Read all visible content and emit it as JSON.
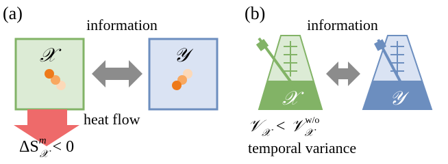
{
  "panels": [
    {
      "label": "(a)",
      "arrow_label": "information",
      "left_label": "𝒳",
      "right_label": "𝒴",
      "heat_label": "heat flow",
      "formula": {
        "base": "ΔS",
        "sup": "m",
        "sub": "𝒳",
        "rest": "< 0"
      }
    },
    {
      "label": "(b)",
      "arrow_label": "information",
      "left_label": "𝒳",
      "right_label": "𝒴",
      "formula": {
        "lhs": "𝒱",
        "lhs_sub": "𝒳",
        "op": "<",
        "rhs": "𝒱",
        "rhs_sub": "𝒳",
        "rhs_sup": "w/o"
      },
      "caption": "temporal variance"
    }
  ]
}
